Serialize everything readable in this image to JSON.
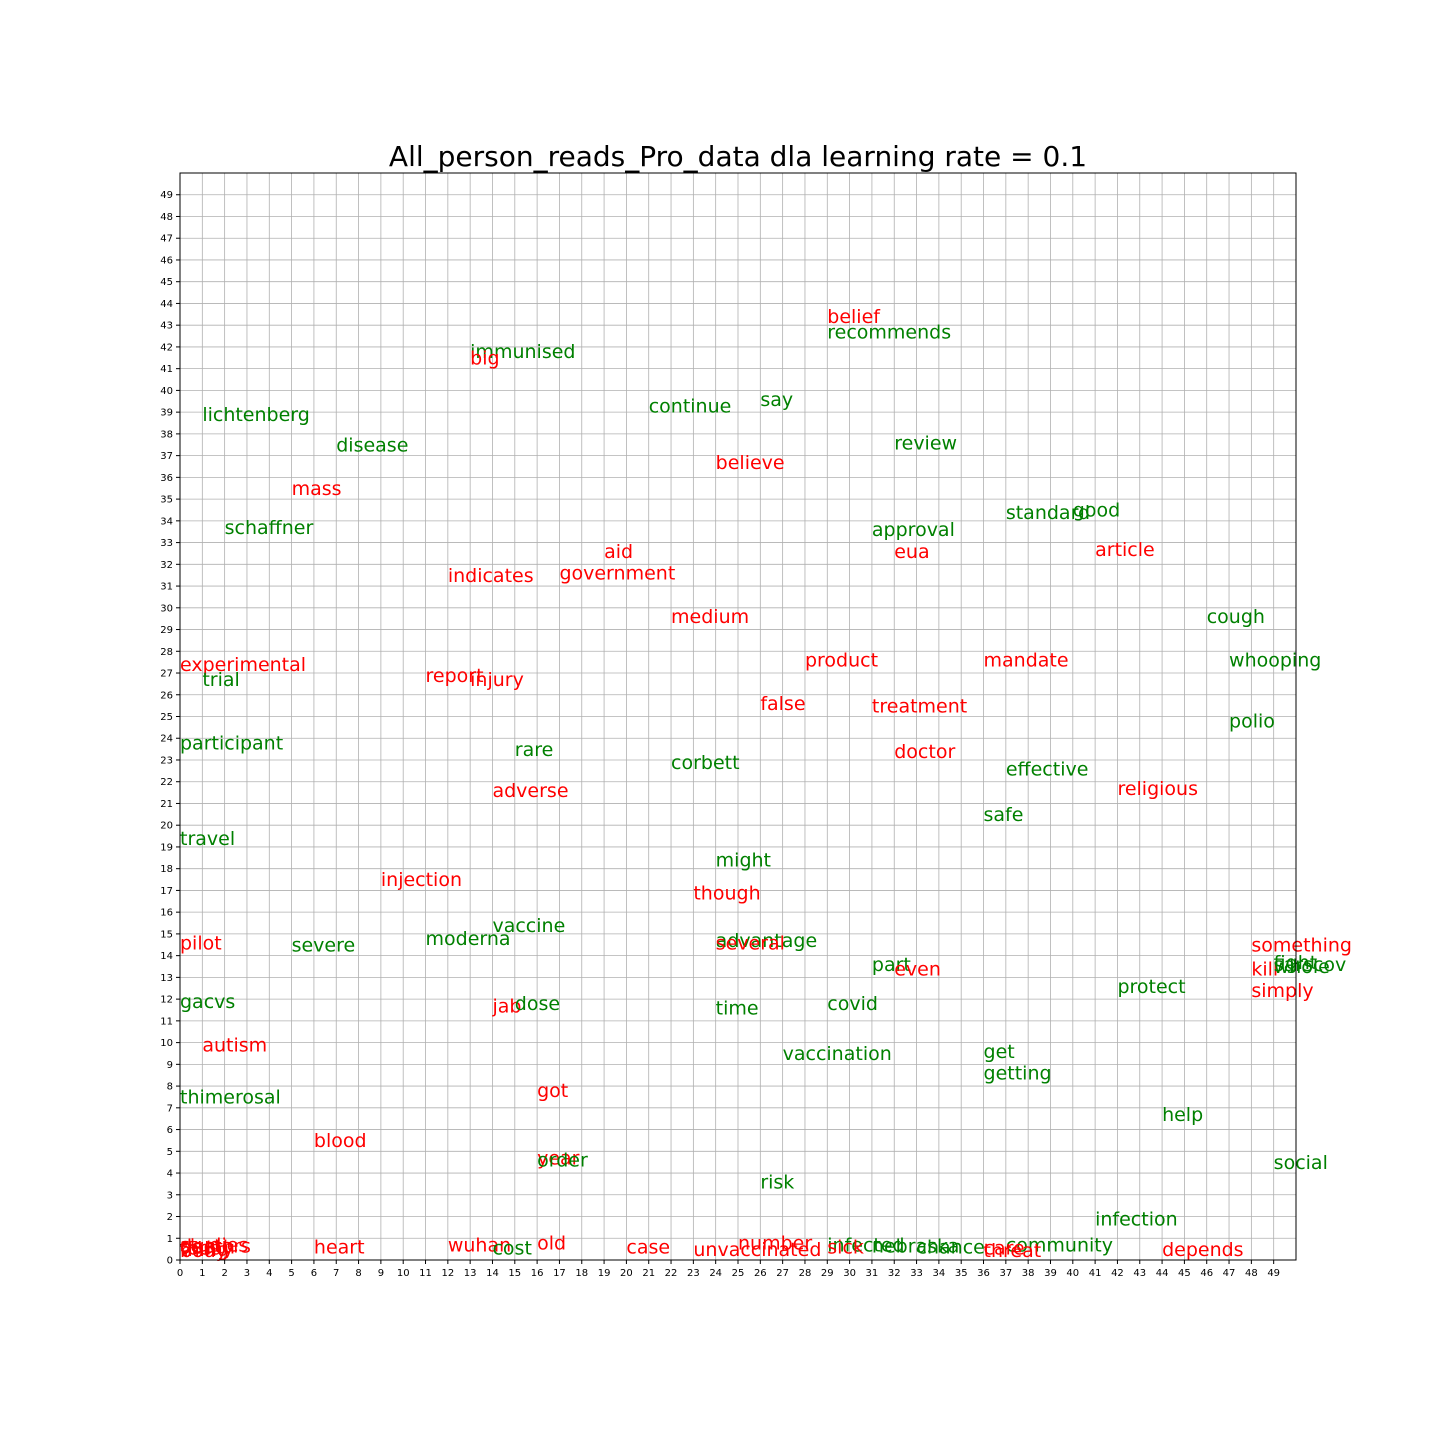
{
  "chart_data": {
    "type": "scatter",
    "title": "All_person_reads_Pro_data dla learning rate = 0.1",
    "xlabel": "",
    "ylabel": "",
    "xlim": [
      0,
      50
    ],
    "ylim": [
      0,
      50
    ],
    "xticks": [
      0,
      1,
      2,
      3,
      4,
      5,
      6,
      7,
      8,
      9,
      10,
      11,
      12,
      13,
      14,
      15,
      16,
      17,
      18,
      19,
      20,
      21,
      22,
      23,
      24,
      25,
      26,
      27,
      28,
      29,
      30,
      31,
      32,
      33,
      34,
      35,
      36,
      37,
      38,
      39,
      40,
      41,
      42,
      43,
      44,
      45,
      46,
      47,
      48,
      49
    ],
    "yticks": [
      0,
      1,
      2,
      3,
      4,
      5,
      6,
      7,
      8,
      9,
      10,
      11,
      12,
      13,
      14,
      15,
      16,
      17,
      18,
      19,
      20,
      21,
      22,
      23,
      24,
      25,
      26,
      27,
      28,
      29,
      30,
      31,
      32,
      33,
      34,
      35,
      36,
      37,
      38,
      39,
      40,
      41,
      42,
      43,
      44,
      45,
      46,
      47,
      48,
      49
    ],
    "grid": true,
    "colors": {
      "red": "#ff0000",
      "green": "#008000"
    },
    "points": [
      {
        "text": "belief",
        "x": 29,
        "y": 43,
        "color": "red"
      },
      {
        "text": "recommends",
        "x": 29,
        "y": 42.3,
        "color": "green"
      },
      {
        "text": "immunised",
        "x": 13,
        "y": 41.4,
        "color": "green"
      },
      {
        "text": "big",
        "x": 13,
        "y": 41.1,
        "color": "red"
      },
      {
        "text": "continue",
        "x": 21,
        "y": 38.9,
        "color": "green"
      },
      {
        "text": "say",
        "x": 26,
        "y": 39.2,
        "color": "green"
      },
      {
        "text": "lichtenberg",
        "x": 1,
        "y": 38.5,
        "color": "green"
      },
      {
        "text": "review",
        "x": 32,
        "y": 37.2,
        "color": "green"
      },
      {
        "text": "disease",
        "x": 7,
        "y": 37.1,
        "color": "green"
      },
      {
        "text": "believe",
        "x": 24,
        "y": 36.3,
        "color": "red"
      },
      {
        "text": "mass",
        "x": 5,
        "y": 35.1,
        "color": "red"
      },
      {
        "text": "standard",
        "x": 37,
        "y": 34,
        "color": "green"
      },
      {
        "text": "good",
        "x": 40,
        "y": 34.1,
        "color": "green"
      },
      {
        "text": "schaffner",
        "x": 2,
        "y": 33.3,
        "color": "green"
      },
      {
        "text": "approval",
        "x": 31,
        "y": 33.2,
        "color": "green"
      },
      {
        "text": "aid",
        "x": 19,
        "y": 32.2,
        "color": "red"
      },
      {
        "text": "eua",
        "x": 32,
        "y": 32.2,
        "color": "red"
      },
      {
        "text": "article",
        "x": 41,
        "y": 32.3,
        "color": "red"
      },
      {
        "text": "indicates",
        "x": 12,
        "y": 31.1,
        "color": "red"
      },
      {
        "text": "government",
        "x": 17,
        "y": 31.2,
        "color": "red"
      },
      {
        "text": "medium",
        "x": 22,
        "y": 29.2,
        "color": "red"
      },
      {
        "text": "cough",
        "x": 46,
        "y": 29.2,
        "color": "green"
      },
      {
        "text": "product",
        "x": 28,
        "y": 27.2,
        "color": "red"
      },
      {
        "text": "mandate",
        "x": 36,
        "y": 27.2,
        "color": "red"
      },
      {
        "text": "whooping",
        "x": 47,
        "y": 27.2,
        "color": "green"
      },
      {
        "text": "experimental",
        "x": 0,
        "y": 27,
        "color": "red"
      },
      {
        "text": "report",
        "x": 11,
        "y": 26.5,
        "color": "red"
      },
      {
        "text": "trial",
        "x": 1,
        "y": 26.3,
        "color": "green"
      },
      {
        "text": "injury",
        "x": 13,
        "y": 26.3,
        "color": "red"
      },
      {
        "text": "false",
        "x": 26,
        "y": 25.2,
        "color": "red"
      },
      {
        "text": "treatment",
        "x": 31,
        "y": 25.1,
        "color": "red"
      },
      {
        "text": "polio",
        "x": 47,
        "y": 24.4,
        "color": "green"
      },
      {
        "text": "participant",
        "x": 0,
        "y": 23.4,
        "color": "green"
      },
      {
        "text": "rare",
        "x": 15,
        "y": 23.1,
        "color": "green"
      },
      {
        "text": "doctor",
        "x": 32,
        "y": 23,
        "color": "red"
      },
      {
        "text": "corbett",
        "x": 22,
        "y": 22.5,
        "color": "green"
      },
      {
        "text": "effective",
        "x": 37,
        "y": 22.2,
        "color": "green"
      },
      {
        "text": "religious",
        "x": 42,
        "y": 21.3,
        "color": "red"
      },
      {
        "text": "adverse",
        "x": 14,
        "y": 21.2,
        "color": "red"
      },
      {
        "text": "safe",
        "x": 36,
        "y": 20.1,
        "color": "green"
      },
      {
        "text": "travel",
        "x": 0,
        "y": 19,
        "color": "green"
      },
      {
        "text": "might",
        "x": 24,
        "y": 18,
        "color": "green"
      },
      {
        "text": "injection",
        "x": 9,
        "y": 17.1,
        "color": "red"
      },
      {
        "text": "though",
        "x": 23,
        "y": 16.5,
        "color": "red"
      },
      {
        "text": "vaccine",
        "x": 14,
        "y": 15,
        "color": "green"
      },
      {
        "text": "moderna",
        "x": 11,
        "y": 14.4,
        "color": "green"
      },
      {
        "text": "pilot",
        "x": 0,
        "y": 14.2,
        "color": "red"
      },
      {
        "text": "severe",
        "x": 5,
        "y": 14.1,
        "color": "green"
      },
      {
        "text": "advantage",
        "x": 24,
        "y": 14.3,
        "color": "green"
      },
      {
        "text": "several",
        "x": 24,
        "y": 14.2,
        "color": "red"
      },
      {
        "text": "something",
        "x": 48,
        "y": 14.1,
        "color": "red"
      },
      {
        "text": "part",
        "x": 31,
        "y": 13.2,
        "color": "green"
      },
      {
        "text": "even",
        "x": 32,
        "y": 13,
        "color": "red"
      },
      {
        "text": "fight",
        "x": 49,
        "y": 13.3,
        "color": "green"
      },
      {
        "text": "kill",
        "x": 48,
        "y": 13,
        "color": "red"
      },
      {
        "text": "whole",
        "x": 49,
        "y": 13.1,
        "color": "green"
      },
      {
        "text": "sarscov",
        "x": 49,
        "y": 13.2,
        "color": "green"
      },
      {
        "text": "protect",
        "x": 42,
        "y": 12.2,
        "color": "green"
      },
      {
        "text": "simply",
        "x": 48,
        "y": 12,
        "color": "red"
      },
      {
        "text": "gacvs",
        "x": 0,
        "y": 11.5,
        "color": "green"
      },
      {
        "text": "jab",
        "x": 14,
        "y": 11.3,
        "color": "red"
      },
      {
        "text": "dose",
        "x": 15,
        "y": 11.4,
        "color": "green"
      },
      {
        "text": "covid",
        "x": 29,
        "y": 11.4,
        "color": "green"
      },
      {
        "text": "time",
        "x": 24,
        "y": 11.2,
        "color": "green"
      },
      {
        "text": "autism",
        "x": 1,
        "y": 9.5,
        "color": "red"
      },
      {
        "text": "get",
        "x": 36,
        "y": 9.2,
        "color": "green"
      },
      {
        "text": "vaccination",
        "x": 27,
        "y": 9.1,
        "color": "green"
      },
      {
        "text": "getting",
        "x": 36,
        "y": 8.2,
        "color": "green"
      },
      {
        "text": "got",
        "x": 16,
        "y": 7.4,
        "color": "red"
      },
      {
        "text": "thimerosal",
        "x": 0,
        "y": 7.1,
        "color": "green"
      },
      {
        "text": "help",
        "x": 44,
        "y": 6.3,
        "color": "green"
      },
      {
        "text": "blood",
        "x": 6,
        "y": 5.1,
        "color": "red"
      },
      {
        "text": "year",
        "x": 16,
        "y": 4.3,
        "color": "red"
      },
      {
        "text": "order",
        "x": 16,
        "y": 4.2,
        "color": "green"
      },
      {
        "text": "social",
        "x": 49,
        "y": 4.1,
        "color": "green"
      },
      {
        "text": "risk",
        "x": 26,
        "y": 3.2,
        "color": "green"
      },
      {
        "text": "infection",
        "x": 41,
        "y": 1.5,
        "color": "green"
      },
      {
        "text": "old",
        "x": 16,
        "y": 0.4,
        "color": "red"
      },
      {
        "text": "number",
        "x": 25,
        "y": 0.4,
        "color": "red"
      },
      {
        "text": "community",
        "x": 37,
        "y": 0.3,
        "color": "green"
      },
      {
        "text": "wuhan",
        "x": 12,
        "y": 0.3,
        "color": "red"
      },
      {
        "text": "infected",
        "x": 29,
        "y": 0.3,
        "color": "green"
      },
      {
        "text": "nebraska",
        "x": 31,
        "y": 0.25,
        "color": "green"
      },
      {
        "text": "chance",
        "x": 33,
        "y": 0.2,
        "color": "green"
      },
      {
        "text": "heart",
        "x": 6,
        "y": 0.2,
        "color": "red"
      },
      {
        "text": "case",
        "x": 20,
        "y": 0.2,
        "color": "red"
      },
      {
        "text": "sick",
        "x": 29,
        "y": 0.2,
        "color": "red"
      },
      {
        "text": "care",
        "x": 36,
        "y": 0.15,
        "color": "red"
      },
      {
        "text": "cost",
        "x": 14,
        "y": 0.15,
        "color": "green"
      },
      {
        "text": "unvaccinated",
        "x": 23,
        "y": 0.1,
        "color": "red"
      },
      {
        "text": "depends",
        "x": 44,
        "y": 0.1,
        "color": "red"
      },
      {
        "text": "threat",
        "x": 36,
        "y": 0.05,
        "color": "red"
      },
      {
        "text": "studies",
        "x": 0,
        "y": 0.3,
        "color": "red"
      },
      {
        "text": "doctors",
        "x": 0,
        "y": 0.25,
        "color": "red"
      },
      {
        "text": "death",
        "x": 0,
        "y": 0.2,
        "color": "red"
      },
      {
        "text": "today",
        "x": 0,
        "y": 0.15,
        "color": "red"
      },
      {
        "text": "thing",
        "x": 0,
        "y": 0.1,
        "color": "red"
      },
      {
        "text": "body",
        "x": 0,
        "y": 0.05,
        "color": "red"
      }
    ]
  }
}
